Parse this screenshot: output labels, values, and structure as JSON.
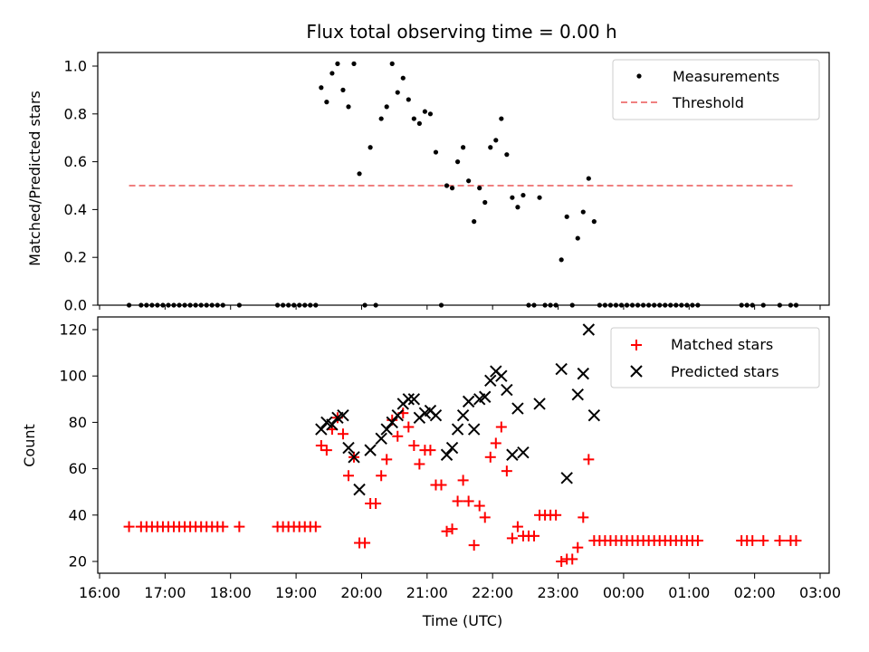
{
  "chart_data": [
    {
      "type": "scatter",
      "title": "Flux total observing time = 0.00 h",
      "xlabel": "",
      "ylabel": "Matched/Predicted stars",
      "xlim": [
        "16:00",
        "03:00"
      ],
      "ylim": [
        0,
        1.05
      ],
      "x_ticks": [
        "16:00",
        "17:00",
        "18:00",
        "19:00",
        "20:00",
        "21:00",
        "22:00",
        "23:00",
        "00:00",
        "01:00",
        "02:00",
        "03:00"
      ],
      "y_ticks": [
        "0.0",
        "0.2",
        "0.4",
        "0.6",
        "0.8",
        "1.0"
      ],
      "legend_position": "top-right",
      "series": [
        {
          "name": "Measurements",
          "style": "black dots",
          "color": "#000000",
          "points": [
            [
              "16:27",
              0
            ],
            [
              "16:38",
              0
            ],
            [
              "16:43",
              0
            ],
            [
              "16:48",
              0
            ],
            [
              "16:53",
              0
            ],
            [
              "16:58",
              0
            ],
            [
              "17:03",
              0
            ],
            [
              "17:08",
              0
            ],
            [
              "17:13",
              0
            ],
            [
              "17:18",
              0
            ],
            [
              "17:23",
              0
            ],
            [
              "17:28",
              0
            ],
            [
              "17:33",
              0
            ],
            [
              "17:38",
              0
            ],
            [
              "17:43",
              0
            ],
            [
              "17:48",
              0
            ],
            [
              "17:53",
              0
            ],
            [
              "18:08",
              0
            ],
            [
              "18:43",
              0
            ],
            [
              "18:48",
              0
            ],
            [
              "18:53",
              0
            ],
            [
              "18:58",
              0
            ],
            [
              "19:03",
              0
            ],
            [
              "19:08",
              0
            ],
            [
              "19:13",
              0
            ],
            [
              "19:18",
              0
            ],
            [
              "19:23",
              0.91
            ],
            [
              "19:28",
              0.85
            ],
            [
              "19:33",
              0.97
            ],
            [
              "19:38",
              1.01
            ],
            [
              "19:43",
              0.9
            ],
            [
              "19:48",
              0.83
            ],
            [
              "19:53",
              1.01
            ],
            [
              "19:58",
              0.55
            ],
            [
              "20:03",
              0
            ],
            [
              "20:08",
              0.66
            ],
            [
              "20:13",
              0
            ],
            [
              "20:18",
              0.78
            ],
            [
              "20:23",
              0.83
            ],
            [
              "20:28",
              1.01
            ],
            [
              "20:33",
              0.89
            ],
            [
              "20:38",
              0.95
            ],
            [
              "20:43",
              0.86
            ],
            [
              "20:48",
              0.78
            ],
            [
              "20:53",
              0.76
            ],
            [
              "20:58",
              0.81
            ],
            [
              "21:03",
              0.8
            ],
            [
              "21:08",
              0.64
            ],
            [
              "21:13",
              0
            ],
            [
              "21:18",
              0.5
            ],
            [
              "21:23",
              0.49
            ],
            [
              "21:28",
              0.6
            ],
            [
              "21:33",
              0.66
            ],
            [
              "21:38",
              0.52
            ],
            [
              "21:43",
              0.35
            ],
            [
              "21:48",
              0.49
            ],
            [
              "21:53",
              0.43
            ],
            [
              "21:58",
              0.66
            ],
            [
              "22:03",
              0.69
            ],
            [
              "22:08",
              0.78
            ],
            [
              "22:13",
              0.63
            ],
            [
              "22:18",
              0.45
            ],
            [
              "22:23",
              0.41
            ],
            [
              "22:28",
              0.46
            ],
            [
              "22:33",
              0
            ],
            [
              "22:38",
              0
            ],
            [
              "22:43",
              0.45
            ],
            [
              "22:48",
              0
            ],
            [
              "22:53",
              0
            ],
            [
              "22:58",
              0
            ],
            [
              "23:03",
              0.19
            ],
            [
              "23:08",
              0.37
            ],
            [
              "23:13",
              0
            ],
            [
              "23:18",
              0.28
            ],
            [
              "23:23",
              0.39
            ],
            [
              "23:28",
              0.53
            ],
            [
              "23:33",
              0.35
            ],
            [
              "23:38",
              0
            ],
            [
              "23:43",
              0
            ],
            [
              "23:48",
              0
            ],
            [
              "23:53",
              0
            ],
            [
              "23:58",
              0
            ],
            [
              "00:03",
              0
            ],
            [
              "00:08",
              0
            ],
            [
              "00:13",
              0
            ],
            [
              "00:18",
              0
            ],
            [
              "00:23",
              0
            ],
            [
              "00:28",
              0
            ],
            [
              "00:33",
              0
            ],
            [
              "00:38",
              0
            ],
            [
              "00:43",
              0
            ],
            [
              "00:48",
              0
            ],
            [
              "00:53",
              0
            ],
            [
              "00:58",
              0
            ],
            [
              "01:03",
              0
            ],
            [
              "01:08",
              0
            ],
            [
              "01:48",
              0
            ],
            [
              "01:53",
              0
            ],
            [
              "01:58",
              0
            ],
            [
              "02:08",
              0
            ],
            [
              "02:23",
              0
            ],
            [
              "02:33",
              0
            ],
            [
              "02:38",
              0
            ]
          ]
        },
        {
          "name": "Threshold",
          "style": "dashed line",
          "color": "#f08080",
          "points": [
            [
              "16:27",
              0.5
            ],
            [
              "02:38",
              0.5
            ]
          ]
        }
      ]
    },
    {
      "type": "scatter",
      "title": "",
      "xlabel": "Time (UTC)",
      "ylabel": "Count",
      "xlim": [
        "16:00",
        "03:00"
      ],
      "ylim": [
        15,
        125
      ],
      "x_ticks": [
        "16:00",
        "17:00",
        "18:00",
        "19:00",
        "20:00",
        "21:00",
        "22:00",
        "23:00",
        "00:00",
        "01:00",
        "02:00",
        "03:00"
      ],
      "y_ticks": [
        "20",
        "40",
        "60",
        "80",
        "100",
        "120"
      ],
      "legend_position": "top-right",
      "series": [
        {
          "name": "Matched stars",
          "style": "red plus",
          "color": "#ff0000",
          "points": [
            [
              "16:27",
              35
            ],
            [
              "16:38",
              35
            ],
            [
              "16:43",
              35
            ],
            [
              "16:48",
              35
            ],
            [
              "16:53",
              35
            ],
            [
              "16:58",
              35
            ],
            [
              "17:03",
              35
            ],
            [
              "17:08",
              35
            ],
            [
              "17:13",
              35
            ],
            [
              "17:18",
              35
            ],
            [
              "17:23",
              35
            ],
            [
              "17:28",
              35
            ],
            [
              "17:33",
              35
            ],
            [
              "17:38",
              35
            ],
            [
              "17:43",
              35
            ],
            [
              "17:48",
              35
            ],
            [
              "17:53",
              35
            ],
            [
              "18:08",
              35
            ],
            [
              "18:43",
              35
            ],
            [
              "18:48",
              35
            ],
            [
              "18:53",
              35
            ],
            [
              "18:58",
              35
            ],
            [
              "19:03",
              35
            ],
            [
              "19:08",
              35
            ],
            [
              "19:13",
              35
            ],
            [
              "19:18",
              35
            ],
            [
              "19:23",
              70
            ],
            [
              "19:28",
              68
            ],
            [
              "19:33",
              77
            ],
            [
              "19:38",
              82
            ],
            [
              "19:43",
              75
            ],
            [
              "19:48",
              57
            ],
            [
              "19:53",
              65
            ],
            [
              "19:58",
              28
            ],
            [
              "20:03",
              28
            ],
            [
              "20:08",
              45
            ],
            [
              "20:13",
              45
            ],
            [
              "20:18",
              57
            ],
            [
              "20:23",
              64
            ],
            [
              "20:28",
              81
            ],
            [
              "20:33",
              74
            ],
            [
              "20:38",
              84
            ],
            [
              "20:43",
              78
            ],
            [
              "20:48",
              70
            ],
            [
              "20:53",
              62
            ],
            [
              "20:58",
              68
            ],
            [
              "21:03",
              68
            ],
            [
              "21:08",
              53
            ],
            [
              "21:13",
              53
            ],
            [
              "21:18",
              33
            ],
            [
              "21:23",
              34
            ],
            [
              "21:28",
              46
            ],
            [
              "21:33",
              55
            ],
            [
              "21:38",
              46
            ],
            [
              "21:43",
              27
            ],
            [
              "21:48",
              44
            ],
            [
              "21:53",
              39
            ],
            [
              "21:58",
              65
            ],
            [
              "22:03",
              71
            ],
            [
              "22:08",
              78
            ],
            [
              "22:13",
              59
            ],
            [
              "22:18",
              30
            ],
            [
              "22:23",
              35
            ],
            [
              "22:28",
              31
            ],
            [
              "22:33",
              31
            ],
            [
              "22:38",
              31
            ],
            [
              "22:43",
              40
            ],
            [
              "22:48",
              40
            ],
            [
              "22:53",
              40
            ],
            [
              "22:58",
              40
            ],
            [
              "23:03",
              20
            ],
            [
              "23:08",
              21
            ],
            [
              "23:13",
              21
            ],
            [
              "23:18",
              26
            ],
            [
              "23:23",
              39
            ],
            [
              "23:28",
              64
            ],
            [
              "23:33",
              29
            ],
            [
              "23:38",
              29
            ],
            [
              "23:43",
              29
            ],
            [
              "23:48",
              29
            ],
            [
              "23:53",
              29
            ],
            [
              "23:58",
              29
            ],
            [
              "00:03",
              29
            ],
            [
              "00:08",
              29
            ],
            [
              "00:13",
              29
            ],
            [
              "00:18",
              29
            ],
            [
              "00:23",
              29
            ],
            [
              "00:28",
              29
            ],
            [
              "00:33",
              29
            ],
            [
              "00:38",
              29
            ],
            [
              "00:43",
              29
            ],
            [
              "00:48",
              29
            ],
            [
              "00:53",
              29
            ],
            [
              "00:58",
              29
            ],
            [
              "01:03",
              29
            ],
            [
              "01:08",
              29
            ],
            [
              "01:48",
              29
            ],
            [
              "01:53",
              29
            ],
            [
              "01:58",
              29
            ],
            [
              "02:08",
              29
            ],
            [
              "02:23",
              29
            ],
            [
              "02:33",
              29
            ],
            [
              "02:38",
              29
            ]
          ]
        },
        {
          "name": "Predicted stars",
          "style": "black x",
          "color": "#000000",
          "points": [
            [
              "19:23",
              77
            ],
            [
              "19:28",
              80
            ],
            [
              "19:33",
              79
            ],
            [
              "19:38",
              82
            ],
            [
              "19:43",
              83
            ],
            [
              "19:48",
              69
            ],
            [
              "19:53",
              65
            ],
            [
              "19:58",
              51
            ],
            [
              "20:08",
              68
            ],
            [
              "20:18",
              73
            ],
            [
              "20:23",
              77
            ],
            [
              "20:28",
              80
            ],
            [
              "20:33",
              83
            ],
            [
              "20:38",
              88
            ],
            [
              "20:43",
              90
            ],
            [
              "20:48",
              90
            ],
            [
              "20:53",
              82
            ],
            [
              "20:58",
              84
            ],
            [
              "21:03",
              85
            ],
            [
              "21:08",
              83
            ],
            [
              "21:18",
              66
            ],
            [
              "21:23",
              69
            ],
            [
              "21:28",
              77
            ],
            [
              "21:33",
              83
            ],
            [
              "21:38",
              89
            ],
            [
              "21:43",
              77
            ],
            [
              "21:48",
              90
            ],
            [
              "21:53",
              91
            ],
            [
              "21:58",
              98
            ],
            [
              "22:03",
              102
            ],
            [
              "22:08",
              100
            ],
            [
              "22:13",
              94
            ],
            [
              "22:18",
              66
            ],
            [
              "22:23",
              86
            ],
            [
              "22:28",
              67
            ],
            [
              "22:43",
              88
            ],
            [
              "23:03",
              103
            ],
            [
              "23:08",
              56
            ],
            [
              "23:18",
              92
            ],
            [
              "23:23",
              101
            ],
            [
              "23:28",
              120
            ],
            [
              "23:33",
              83
            ]
          ]
        }
      ]
    }
  ]
}
